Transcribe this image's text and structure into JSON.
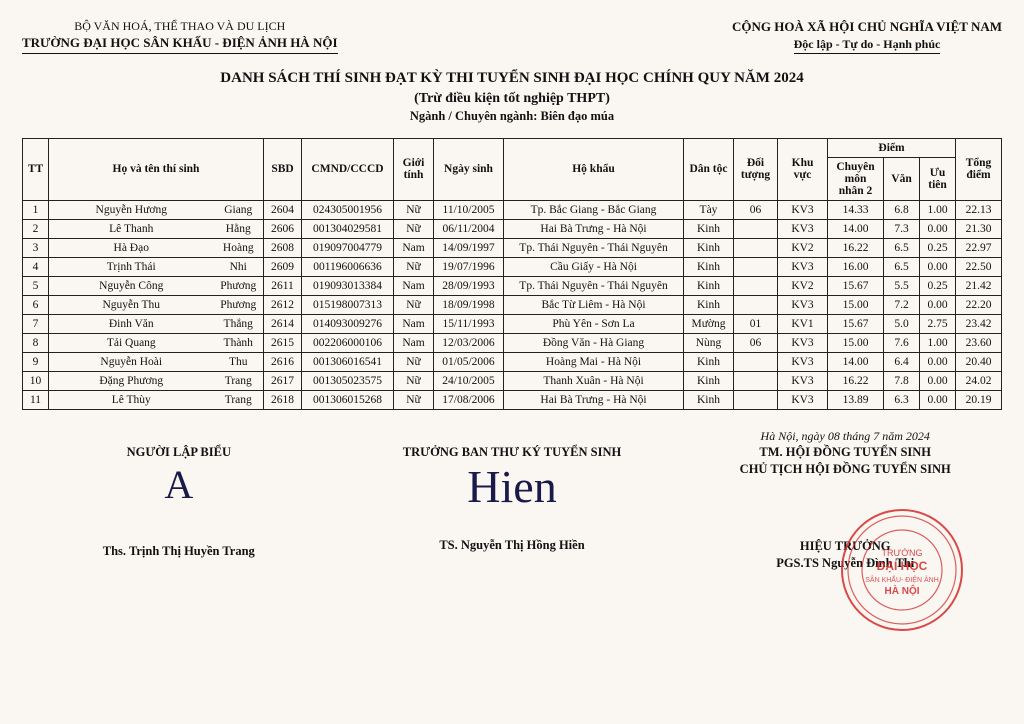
{
  "header": {
    "ministry": "BỘ VĂN HOÁ, THỂ THAO VÀ DU LỊCH",
    "school": "TRƯỜNG ĐẠI HỌC SÂN KHẤU - ĐIỆN ẢNH HÀ NỘI",
    "country": "CỘNG HOÀ XÃ HỘI CHỦ NGHĨA VIỆT NAM",
    "motto": "Độc lập - Tự do - Hạnh phúc"
  },
  "title": {
    "line1": "DANH SÁCH THÍ SINH ĐẠT KỲ THI TUYỂN SINH  ĐẠI HỌC CHÍNH QUY NĂM 2024",
    "line2": "(Trừ điều kiện tốt nghiệp THPT)",
    "line3": "Ngành / Chuyên ngành: Biên đạo múa"
  },
  "columns": {
    "tt": "TT",
    "name": "Họ và tên thí sinh",
    "sbd": "SBD",
    "cmnd": "CMND/CCCD",
    "gender": "Giới tính",
    "dob": "Ngày sinh",
    "residence": "Hộ khẩu",
    "ethnic": "Dân tộc",
    "subject": "Đối tượng",
    "region": "Khu vực",
    "score_group": "Điểm",
    "score1": "Chuyên môn nhân 2",
    "score2": "Văn",
    "score3": "Ưu tiên",
    "total": "Tổng điểm"
  },
  "rows": [
    {
      "tt": "1",
      "first": "Nguyễn Hương",
      "last": "Giang",
      "sbd": "2604",
      "cmnd": "024305001956",
      "gender": "Nữ",
      "dob": "11/10/2005",
      "res": "Tp. Bắc Giang - Bắc Giang",
      "eth": "Tày",
      "subj": "06",
      "reg": "KV3",
      "s1": "14.33",
      "s2": "6.8",
      "s3": "1.00",
      "tot": "22.13"
    },
    {
      "tt": "2",
      "first": "Lê Thanh",
      "last": "Hằng",
      "sbd": "2606",
      "cmnd": "001304029581",
      "gender": "Nữ",
      "dob": "06/11/2004",
      "res": "Hai Bà Trưng - Hà Nội",
      "eth": "Kinh",
      "subj": "",
      "reg": "KV3",
      "s1": "14.00",
      "s2": "7.3",
      "s3": "0.00",
      "tot": "21.30"
    },
    {
      "tt": "3",
      "first": "Hà Đạo",
      "last": "Hoàng",
      "sbd": "2608",
      "cmnd": "019097004779",
      "gender": "Nam",
      "dob": "14/09/1997",
      "res": "Tp. Thái Nguyên - Thái Nguyên",
      "eth": "Kinh",
      "subj": "",
      "reg": "KV2",
      "s1": "16.22",
      "s2": "6.5",
      "s3": "0.25",
      "tot": "22.97"
    },
    {
      "tt": "4",
      "first": "Trịnh Thái",
      "last": "Nhi",
      "sbd": "2609",
      "cmnd": "001196006636",
      "gender": "Nữ",
      "dob": "19/07/1996",
      "res": "Cầu Giấy - Hà Nội",
      "eth": "Kinh",
      "subj": "",
      "reg": "KV3",
      "s1": "16.00",
      "s2": "6.5",
      "s3": "0.00",
      "tot": "22.50"
    },
    {
      "tt": "5",
      "first": "Nguyễn Công",
      "last": "Phương",
      "sbd": "2611",
      "cmnd": "019093013384",
      "gender": "Nam",
      "dob": "28/09/1993",
      "res": "Tp. Thái Nguyên - Thái Nguyên",
      "eth": "Kinh",
      "subj": "",
      "reg": "KV2",
      "s1": "15.67",
      "s2": "5.5",
      "s3": "0.25",
      "tot": "21.42"
    },
    {
      "tt": "6",
      "first": "Nguyễn Thu",
      "last": "Phương",
      "sbd": "2612",
      "cmnd": "015198007313",
      "gender": "Nữ",
      "dob": "18/09/1998",
      "res": "Bắc Từ Liêm - Hà Nội",
      "eth": "Kinh",
      "subj": "",
      "reg": "KV3",
      "s1": "15.00",
      "s2": "7.2",
      "s3": "0.00",
      "tot": "22.20"
    },
    {
      "tt": "7",
      "first": "Đinh Văn",
      "last": "Thắng",
      "sbd": "2614",
      "cmnd": "014093009276",
      "gender": "Nam",
      "dob": "15/11/1993",
      "res": "Phù Yên - Sơn La",
      "eth": "Mường",
      "subj": "01",
      "reg": "KV1",
      "s1": "15.67",
      "s2": "5.0",
      "s3": "2.75",
      "tot": "23.42"
    },
    {
      "tt": "8",
      "first": "Tải Quang",
      "last": "Thành",
      "sbd": "2615",
      "cmnd": "002206000106",
      "gender": "Nam",
      "dob": "12/03/2006",
      "res": "Đồng Văn - Hà Giang",
      "eth": "Nùng",
      "subj": "06",
      "reg": "KV3",
      "s1": "15.00",
      "s2": "7.6",
      "s3": "1.00",
      "tot": "23.60"
    },
    {
      "tt": "9",
      "first": "Nguyễn Hoài",
      "last": "Thu",
      "sbd": "2616",
      "cmnd": "001306016541",
      "gender": "Nữ",
      "dob": "01/05/2006",
      "res": "Hoàng Mai - Hà Nội",
      "eth": "Kinh",
      "subj": "",
      "reg": "KV3",
      "s1": "14.00",
      "s2": "6.4",
      "s3": "0.00",
      "tot": "20.40"
    },
    {
      "tt": "10",
      "first": "Đặng Phương",
      "last": "Trang",
      "sbd": "2617",
      "cmnd": "001305023575",
      "gender": "Nữ",
      "dob": "24/10/2005",
      "res": "Thanh Xuân - Hà Nội",
      "eth": "Kinh",
      "subj": "",
      "reg": "KV3",
      "s1": "16.22",
      "s2": "7.8",
      "s3": "0.00",
      "tot": "24.02"
    },
    {
      "tt": "11",
      "first": "Lê Thùy",
      "last": "Trang",
      "sbd": "2618",
      "cmnd": "001306015268",
      "gender": "Nữ",
      "dob": "17/08/2006",
      "res": "Hai Bà Trưng - Hà Nội",
      "eth": "Kinh",
      "subj": "",
      "reg": "KV3",
      "s1": "13.89",
      "s2": "6.3",
      "s3": "0.00",
      "tot": "20.19"
    }
  ],
  "signatures": {
    "date": "Hà Nội, ngày 08 tháng 7 năm 2024",
    "left_role": "NGƯỜI LẬP BIỂU",
    "left_name": "Ths. Trịnh Thị Huyền Trang",
    "mid_role": "TRƯỞNG BAN THƯ KÝ TUYỂN SINH",
    "mid_name": "TS. Nguyễn Thị Hồng Hiền",
    "right_role1": "TM. HỘI ĐỒNG TUYỂN SINH",
    "right_role2": "CHỦ TỊCH HỘI ĐỒNG TUYỂN SINH",
    "right_sub": "HIỆU TRƯỞNG",
    "right_name": "PGS.TS Nguyễn Đình Thi"
  },
  "stamp": {
    "line1": "TRƯỜNG",
    "line2": "ĐẠI HỌC",
    "line3": "SÂN KHẤU- ĐIỆN ẢNH",
    "line4": "HÀ NỘI",
    "color": "#d32a2a"
  },
  "style": {
    "page_bg": "#faf7f2",
    "border_color": "#222222",
    "table_font_size": 11.5
  }
}
